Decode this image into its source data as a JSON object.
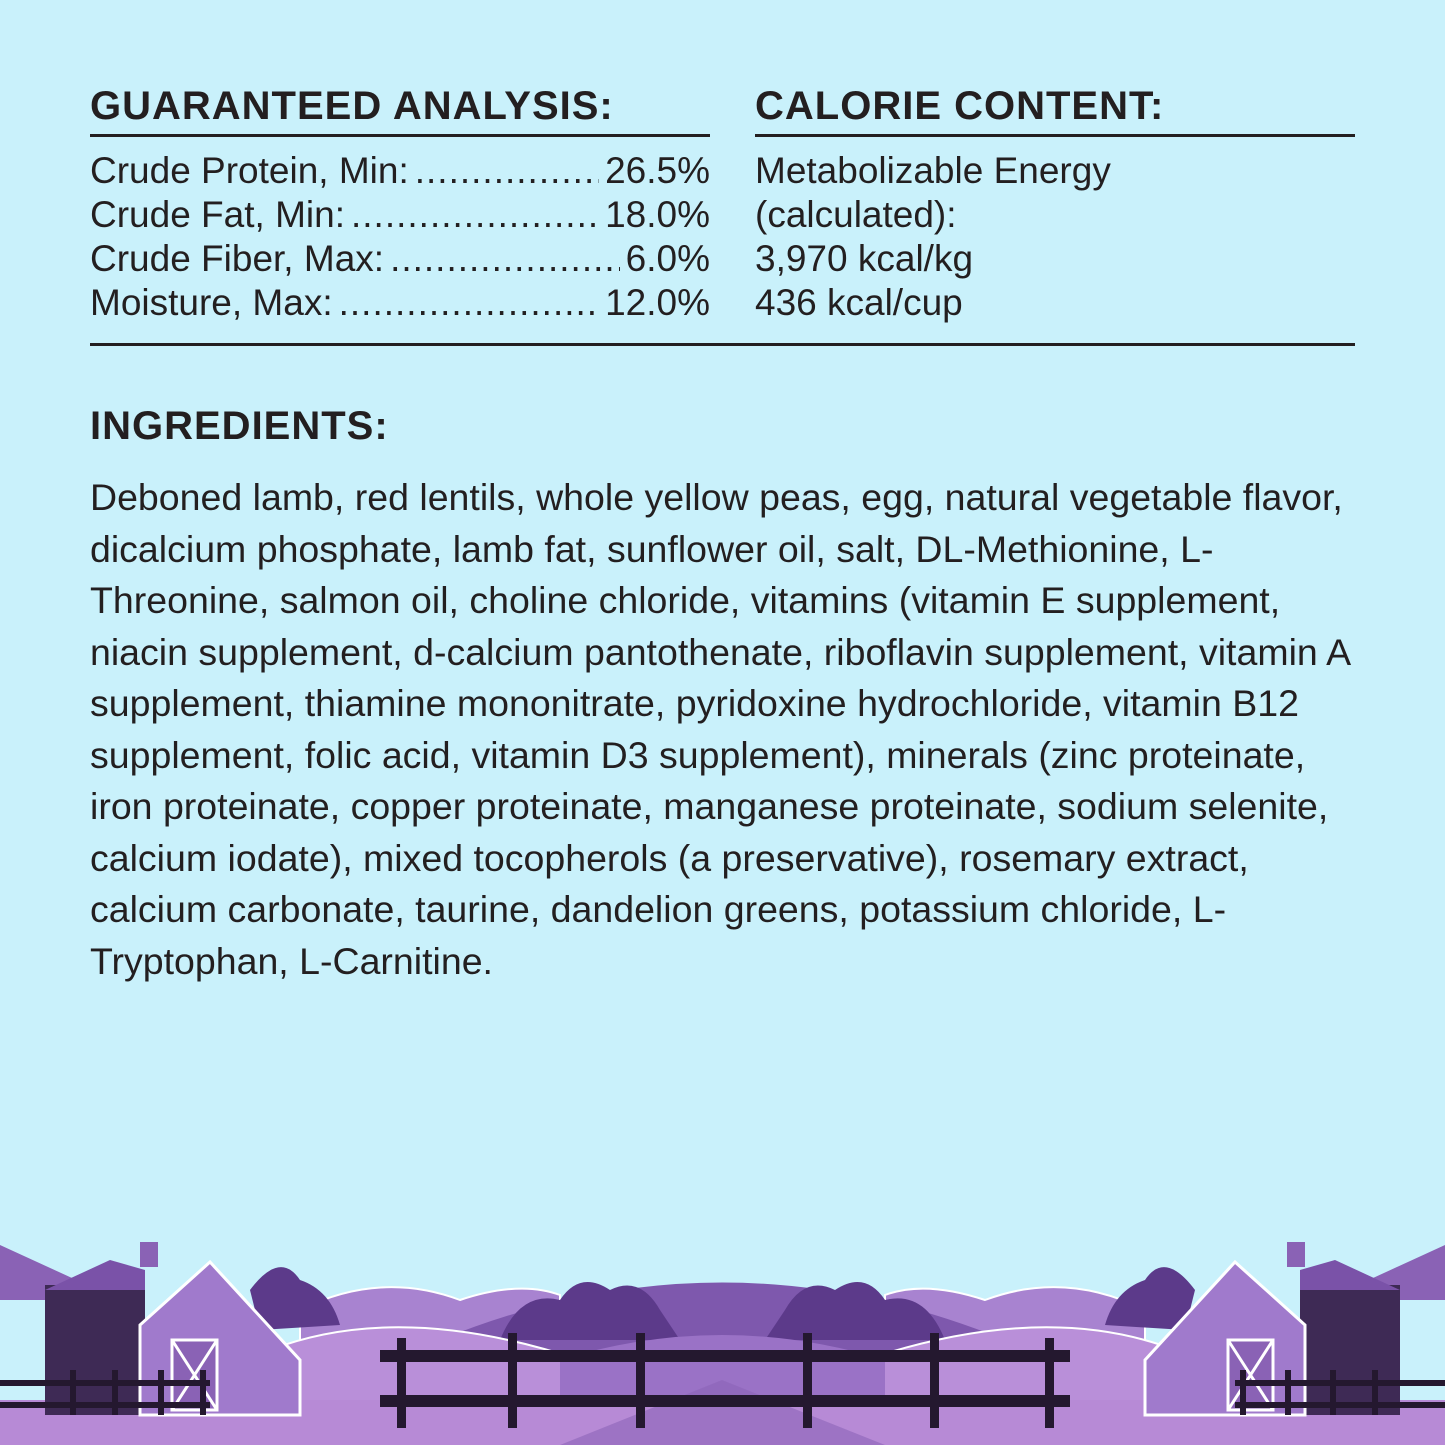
{
  "guaranteed_analysis": {
    "title": "GUARANTEED ANALYSIS:",
    "rows": [
      {
        "label": "Crude Protein, Min:",
        "value": "26.5%"
      },
      {
        "label": "Crude Fat, Min:",
        "value": "18.0%"
      },
      {
        "label": "Crude Fiber, Max:",
        "value": "6.0%"
      },
      {
        "label": "Moisture, Max:",
        "value": "12.0%"
      }
    ]
  },
  "calorie_content": {
    "title": "CALORIE CONTENT:",
    "lines": [
      "Metabolizable Energy",
      "(calculated):",
      "3,970 kcal/kg",
      "436 kcal/cup"
    ]
  },
  "ingredients": {
    "title": "INGREDIENTS:",
    "text": "Deboned lamb, red lentils, whole yellow peas, egg, natural vegetable flavor, dicalcium phosphate, lamb fat, sunflower oil, salt, DL-Methionine, L-Threonine, salmon oil, choline chloride, vitamins (vitamin E supplement, niacin supplement, d-calcium pantothenate, riboflavin supplement, vitamin A supplement, thiamine mononitrate, pyridoxine hydrochloride, vitamin B12 supplement, folic acid, vitamin D3 supplement), minerals (zinc proteinate, iron proteinate, copper proteinate, manganese proteinate, sodium selenite, calcium iodate), mixed tocopherols (a preservative), rosemary extract, calcium carbonate, taurine, dandelion greens, potassium chloride, L-Tryptophan, L-Carnitine."
  },
  "colors": {
    "background": "#c9f1fb",
    "text": "#231f20",
    "illustration": "#9b6fc4"
  }
}
